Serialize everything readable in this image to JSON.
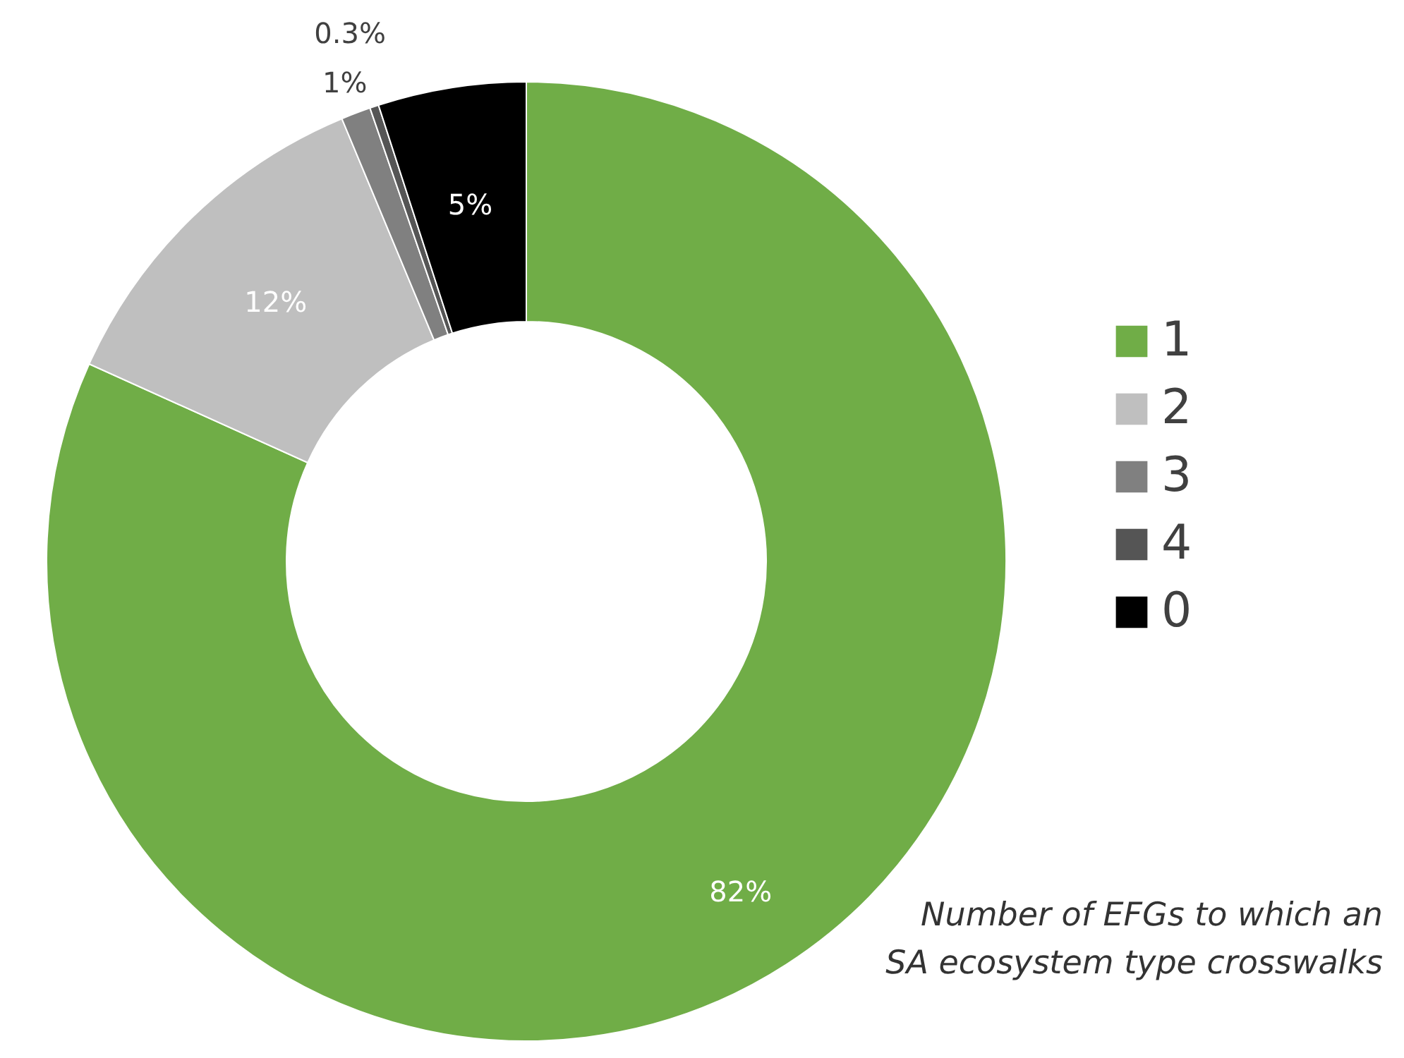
{
  "chart_data": {
    "type": "donut",
    "categories": [
      "1",
      "2",
      "3",
      "4",
      "0"
    ],
    "values": [
      82,
      12,
      1,
      0.3,
      5
    ],
    "colors": [
      "#70ad47",
      "#bfbfbf",
      "#808080",
      "#555555",
      "#000000"
    ],
    "value_labels": [
      "82%",
      "12%",
      "1%",
      "0.3%",
      "5%"
    ],
    "legend": "right",
    "annotations": [
      "Number of EFGs to which an SA ecosystem type crosswalks"
    ]
  }
}
